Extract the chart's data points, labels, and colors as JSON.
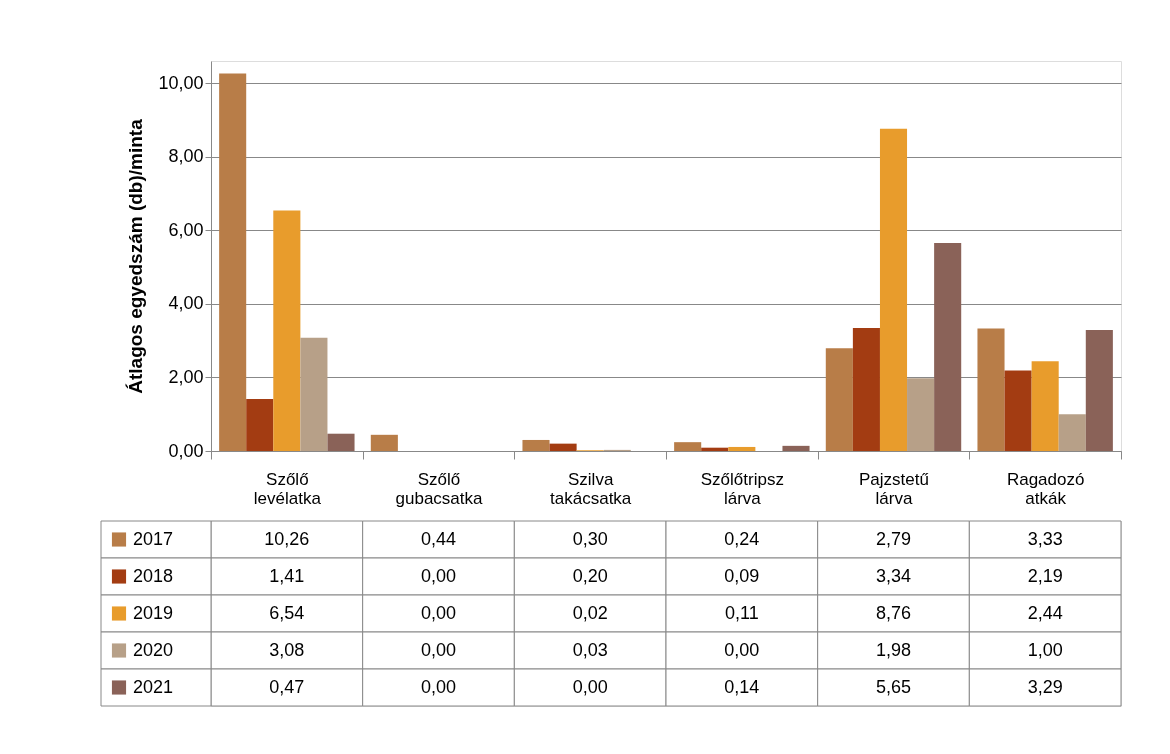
{
  "chart_data": {
    "type": "bar",
    "ylabel": "Átlagos egyedszám (db)/minta",
    "categories": [
      "Szőlő levélatka",
      "Szőlő gubacsatka",
      "Szilva takácsatka",
      "Szőlőtripsz lárva",
      "Pajzstetű lárva",
      "Ragadozó atkák"
    ],
    "series": [
      {
        "name": "2017",
        "color": "#b87d48",
        "values": [
          10.26,
          0.44,
          0.3,
          0.24,
          2.79,
          3.33
        ],
        "value_labels": [
          "10,26",
          "0,44",
          "0,30",
          "0,24",
          "2,79",
          "3,33"
        ]
      },
      {
        "name": "2018",
        "color": "#a33c12",
        "values": [
          1.41,
          0.0,
          0.2,
          0.09,
          3.34,
          2.19
        ],
        "value_labels": [
          "1,41",
          "0,00",
          "0,20",
          "0,09",
          "3,34",
          "2,19"
        ]
      },
      {
        "name": "2019",
        "color": "#e89c2c",
        "values": [
          6.54,
          0.0,
          0.02,
          0.11,
          8.76,
          2.44
        ],
        "value_labels": [
          "6,54",
          "0,00",
          "0,02",
          "0,11",
          "8,76",
          "2,44"
        ]
      },
      {
        "name": "2020",
        "color": "#b7a088",
        "values": [
          3.08,
          0.0,
          0.03,
          0.0,
          1.98,
          1.0
        ],
        "value_labels": [
          "3,08",
          "0,00",
          "0,03",
          "0,00",
          "1,98",
          "1,00"
        ]
      },
      {
        "name": "2021",
        "color": "#8a6258",
        "values": [
          0.47,
          0.0,
          0.0,
          0.14,
          5.65,
          3.29
        ],
        "value_labels": [
          "0,47",
          "0,00",
          "0,00",
          "0,14",
          "5,65",
          "3,29"
        ]
      }
    ],
    "ylim": [
      0,
      10.6
    ],
    "yticks": [
      {
        "value": 0,
        "label": "0,00"
      },
      {
        "value": 2,
        "label": "2,00"
      },
      {
        "value": 4,
        "label": "4,00"
      },
      {
        "value": 6,
        "label": "6,00"
      },
      {
        "value": 8,
        "label": "8,00"
      },
      {
        "value": 10,
        "label": "10,00"
      }
    ],
    "grid": "y",
    "legend": "bottom"
  }
}
